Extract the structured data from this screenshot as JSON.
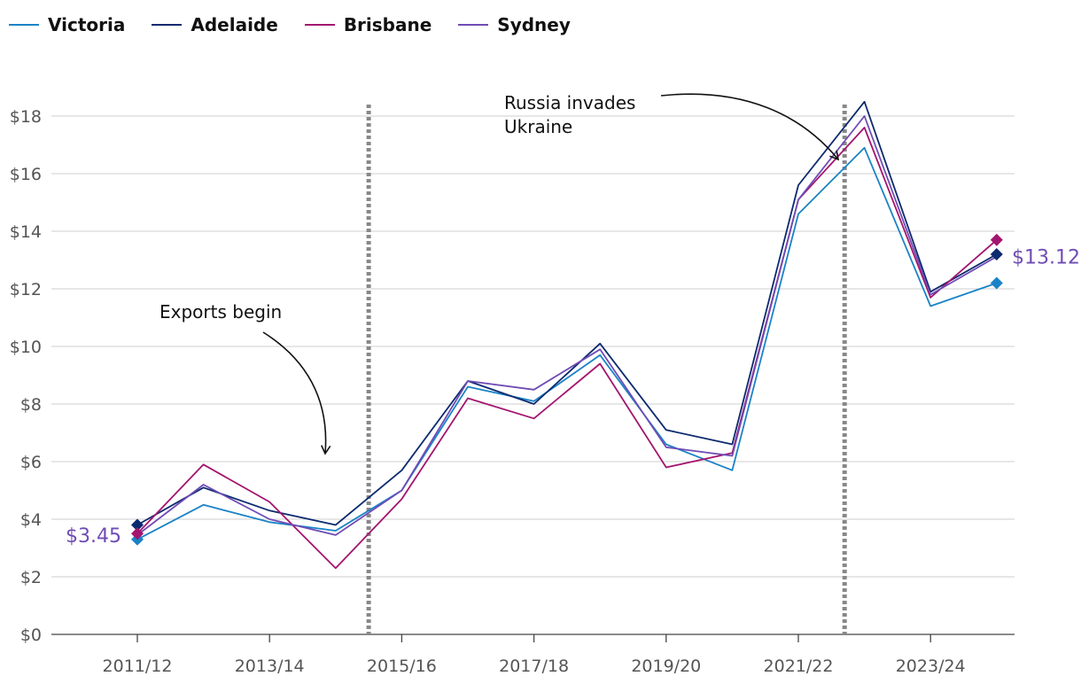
{
  "chart_data": {
    "type": "line",
    "x": [
      "2011/12",
      "2012/13",
      "2013/14",
      "2014/15",
      "2015/16",
      "2016/17",
      "2017/18",
      "2018/19",
      "2019/20",
      "2020/21",
      "2021/22",
      "2022/23",
      "2023/24",
      "2024/25"
    ],
    "x_tick_labels": [
      "2011/12",
      "2013/14",
      "2015/16",
      "2017/18",
      "2019/20",
      "2021/22",
      "2023/24"
    ],
    "y_tick_labels": [
      "$0",
      "$2",
      "$4",
      "$6",
      "$8",
      "$10",
      "$12",
      "$14",
      "$16",
      "$18"
    ],
    "ylim": [
      0,
      18
    ],
    "grid": true,
    "legend_position": "top-left",
    "series": [
      {
        "name": "Victoria",
        "color": "#1a83c7",
        "values": [
          3.3,
          4.5,
          3.9,
          3.6,
          5.0,
          8.6,
          8.1,
          9.7,
          6.6,
          5.7,
          14.6,
          16.9,
          11.4,
          12.2
        ]
      },
      {
        "name": "Adelaide",
        "color": "#0b2a6f",
        "values": [
          3.8,
          5.1,
          4.3,
          3.8,
          5.7,
          8.8,
          8.0,
          10.1,
          7.1,
          6.6,
          15.6,
          18.5,
          11.9,
          13.2
        ]
      },
      {
        "name": "Brisbane",
        "color": "#a3156e",
        "values": [
          3.5,
          5.9,
          4.6,
          2.3,
          4.7,
          8.2,
          7.5,
          9.4,
          5.8,
          6.3,
          15.1,
          17.6,
          11.7,
          13.7
        ]
      },
      {
        "name": "Sydney",
        "color": "#6f4cb5",
        "values": [
          3.45,
          5.2,
          4.0,
          3.45,
          5.0,
          8.8,
          8.5,
          9.9,
          6.5,
          6.2,
          15.1,
          18.0,
          11.8,
          13.12
        ]
      }
    ],
    "markers": [
      {
        "series": "Victoria",
        "x": "2011/12"
      },
      {
        "series": "Adelaide",
        "x": "2011/12"
      },
      {
        "series": "Brisbane",
        "x": "2011/12"
      },
      {
        "series": "Victoria",
        "x": "2024/25"
      },
      {
        "series": "Adelaide",
        "x": "2024/25"
      },
      {
        "series": "Brisbane",
        "x": "2024/25"
      }
    ],
    "start_label": {
      "text": "$3.45",
      "color": "#6f4cb5"
    },
    "end_label": {
      "text": "$13.12",
      "color": "#6f4cb5"
    },
    "vlines": [
      {
        "x": "2014/15",
        "offset": 0.5,
        "label": "Exports begin"
      },
      {
        "x": "2021/22",
        "offset": 0.7,
        "label_lines": [
          "Russia invades",
          "Ukraine"
        ]
      }
    ]
  }
}
